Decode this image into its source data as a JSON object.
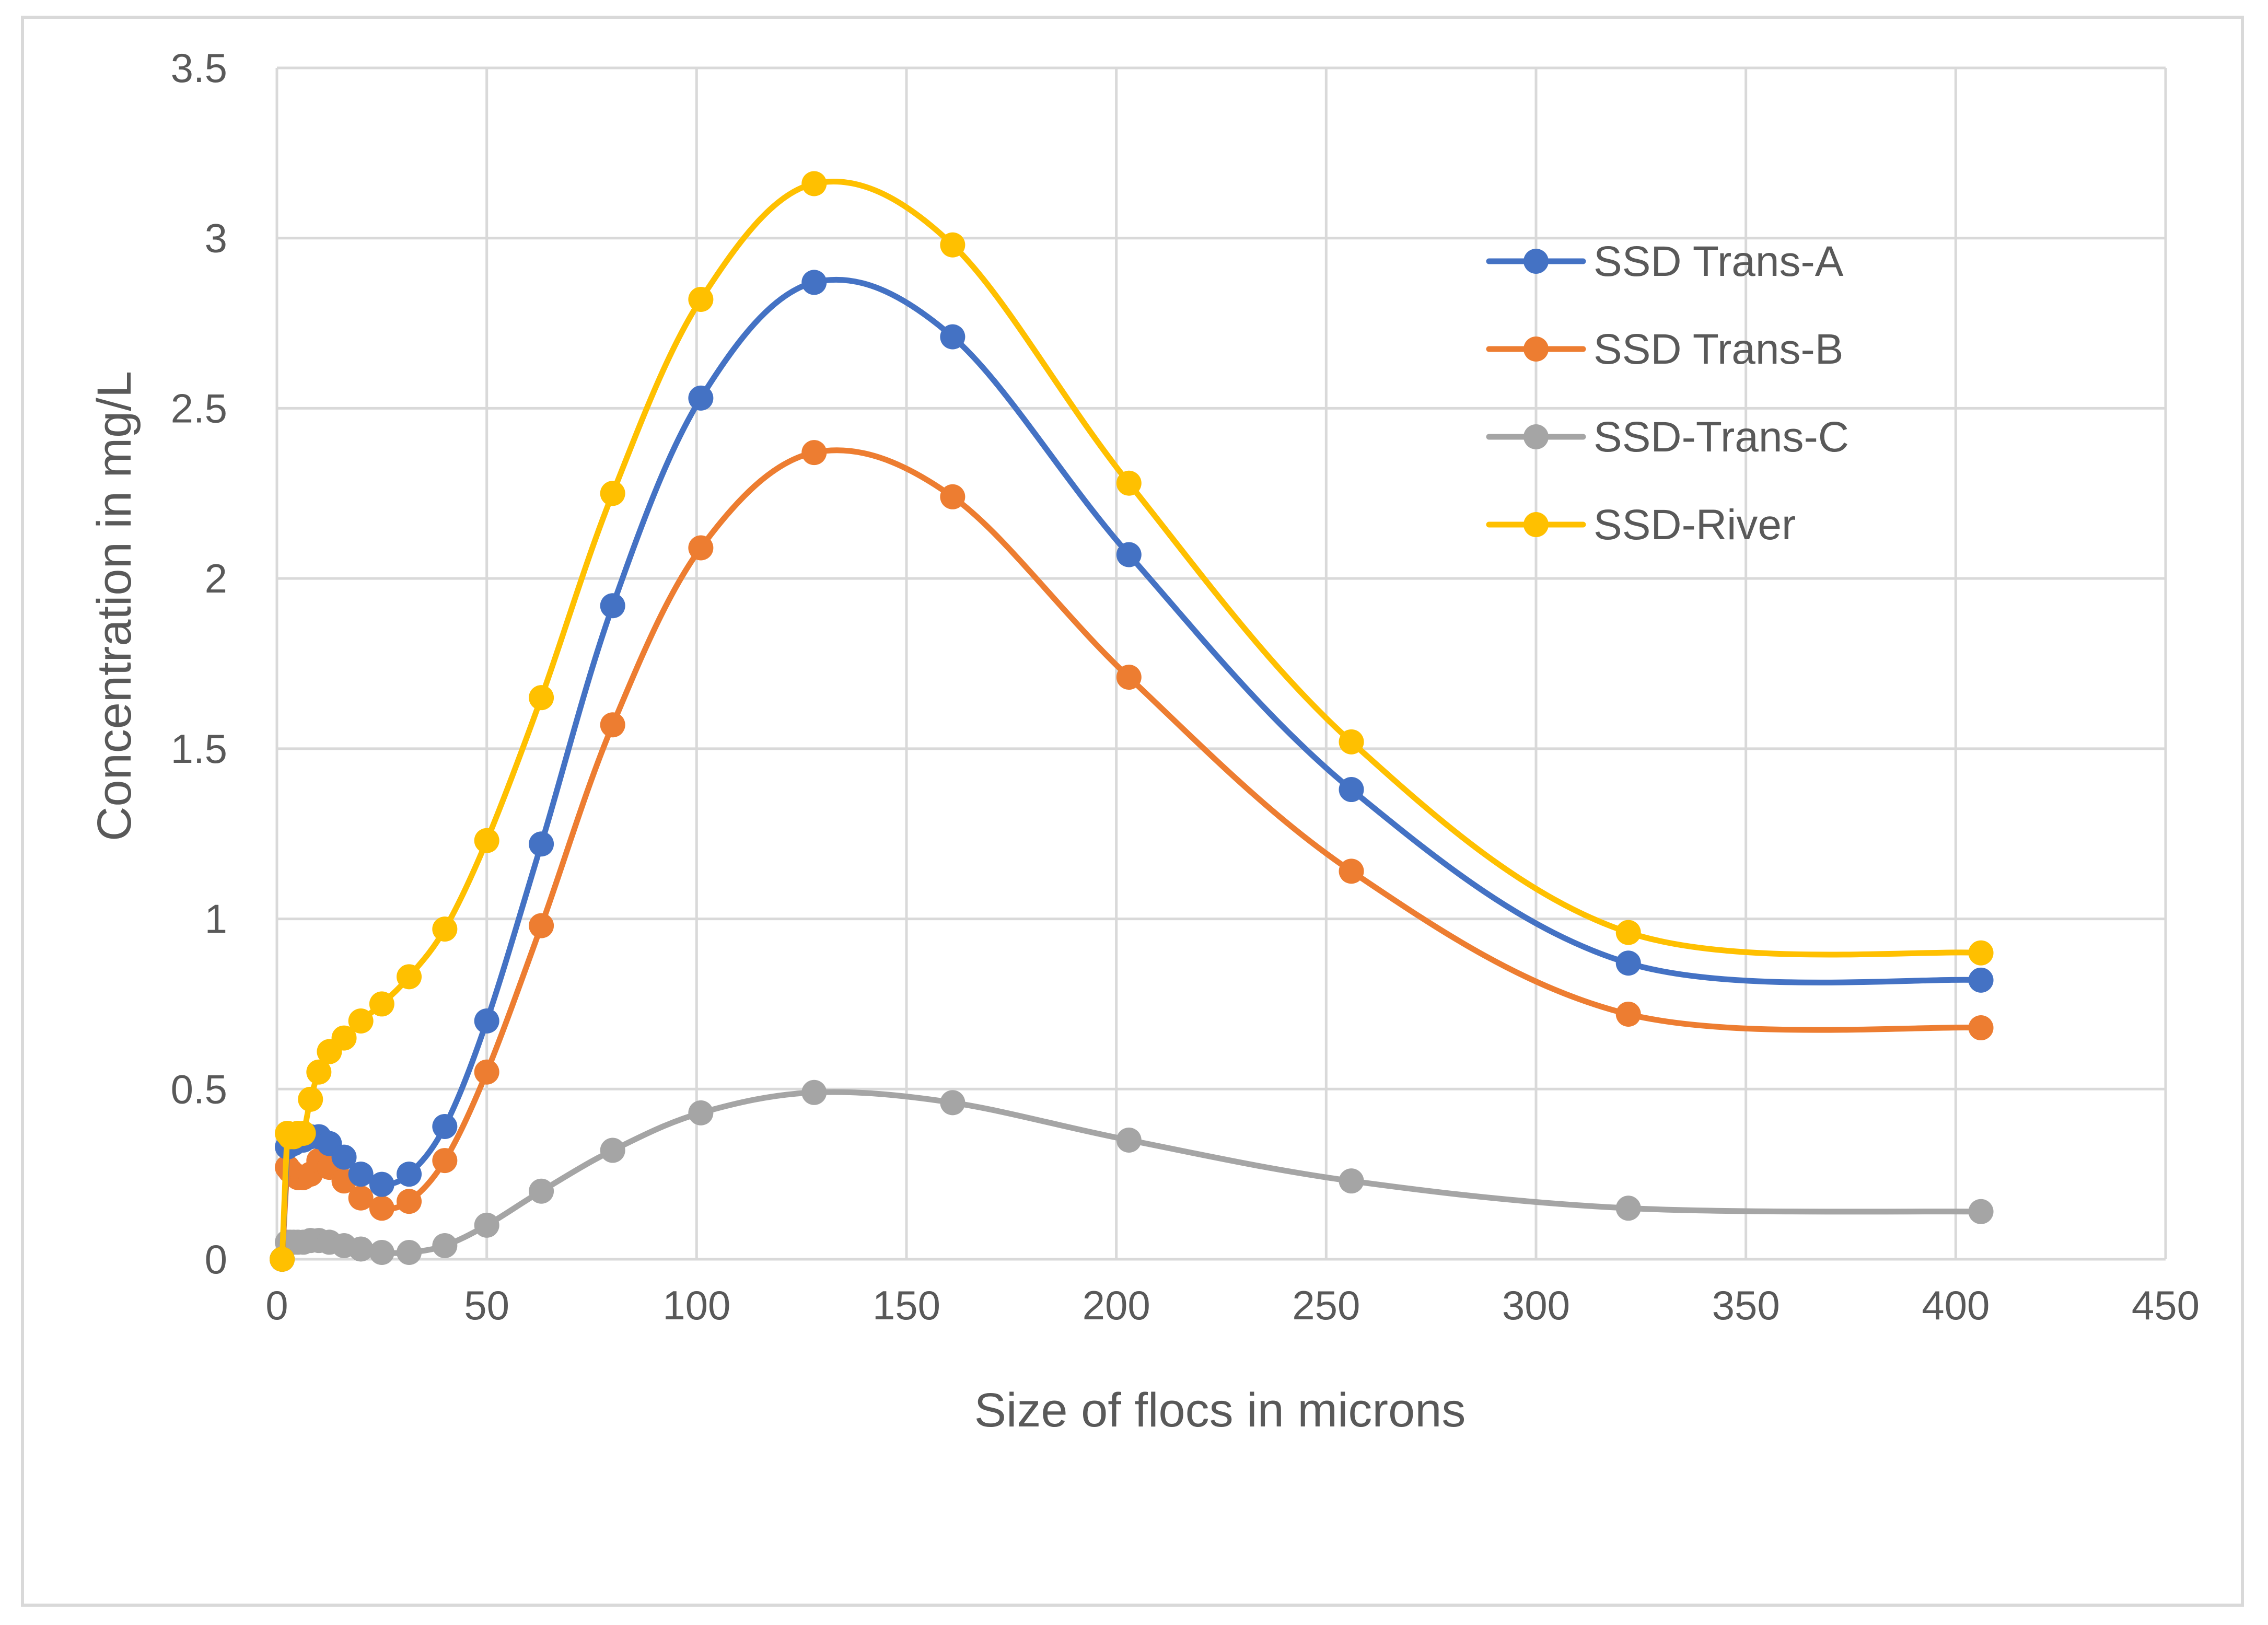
{
  "chart_data": {
    "type": "line",
    "title": "",
    "xlabel": "Size of flocs in microns",
    "ylabel": "Concentration in mg/L",
    "xlim": [
      0,
      450
    ],
    "ylim": [
      0,
      3.5
    ],
    "xticks": [
      0,
      50,
      100,
      150,
      200,
      250,
      300,
      350,
      400,
      450
    ],
    "yticks": [
      0,
      0.5,
      1,
      1.5,
      2,
      2.5,
      3,
      3.5
    ],
    "xtick_labels": [
      "0",
      "50",
      "100",
      "150",
      "200",
      "250",
      "300",
      "350",
      "400",
      "450"
    ],
    "ytick_labels": [
      "0",
      "0.5",
      "1",
      "1.5",
      "2",
      "2.5",
      "3",
      "3.5"
    ],
    "grid": true,
    "legend_position": "right",
    "smooth": true,
    "x": [
      1.25,
      2.5,
      3.15,
      4,
      5,
      6.3,
      8,
      10,
      12.5,
      16,
      20,
      25,
      31.5,
      40,
      50,
      63,
      80,
      101,
      128,
      161,
      203,
      256,
      322,
      406
    ],
    "series": [
      {
        "name": "SSD Trans-A",
        "color": "#4472c4",
        "values": [
          0,
          0.33,
          0.34,
          0.34,
          0.35,
          0.35,
          0.36,
          0.36,
          0.34,
          0.3,
          0.25,
          0.22,
          0.25,
          0.39,
          0.7,
          1.22,
          1.92,
          2.53,
          2.87,
          2.71,
          2.07,
          1.38,
          0.87,
          0.82
        ]
      },
      {
        "name": "SSD Trans-B",
        "color": "#ed7d31",
        "values": [
          0,
          0.27,
          0.26,
          0.25,
          0.24,
          0.24,
          0.25,
          0.29,
          0.27,
          0.23,
          0.18,
          0.15,
          0.17,
          0.29,
          0.55,
          0.98,
          1.57,
          2.09,
          2.37,
          2.24,
          1.71,
          1.14,
          0.72,
          0.68
        ]
      },
      {
        "name": "SSD-Trans-C",
        "color": "#a5a5a5",
        "values": [
          0,
          0.05,
          0.05,
          0.05,
          0.05,
          0.05,
          0.055,
          0.055,
          0.05,
          0.04,
          0.03,
          0.02,
          0.02,
          0.04,
          0.1,
          0.2,
          0.32,
          0.43,
          0.49,
          0.46,
          0.35,
          0.23,
          0.15,
          0.14
        ]
      },
      {
        "name": "SSD-River",
        "color": "#ffc000",
        "values": [
          0,
          0.37,
          0.36,
          0.36,
          0.37,
          0.37,
          0.47,
          0.55,
          0.61,
          0.65,
          0.7,
          0.75,
          0.83,
          0.97,
          1.23,
          1.65,
          2.25,
          2.82,
          3.16,
          2.98,
          2.28,
          1.52,
          0.96,
          0.9
        ]
      }
    ]
  }
}
